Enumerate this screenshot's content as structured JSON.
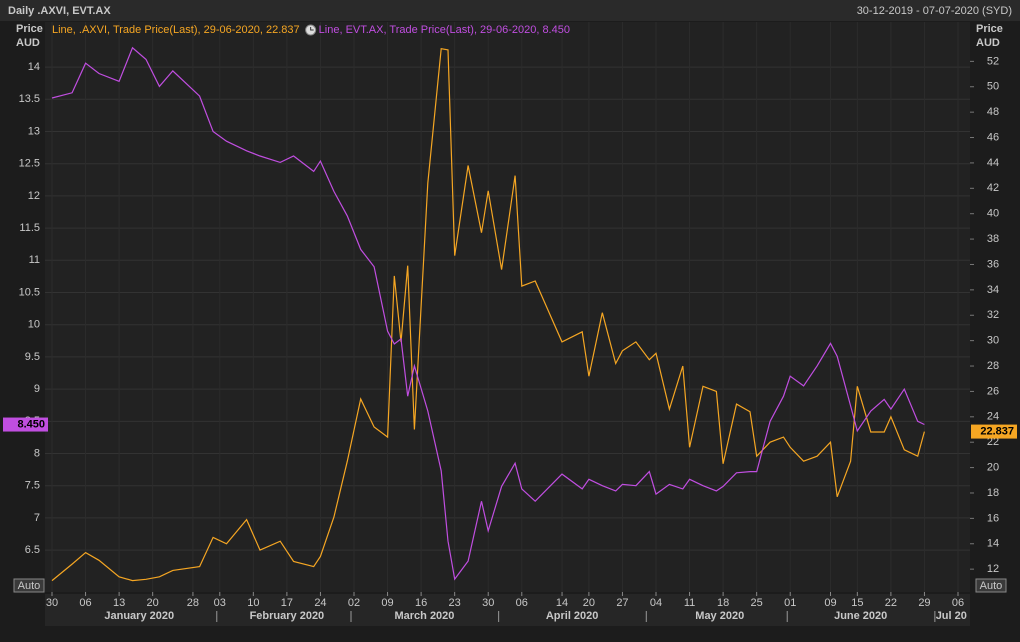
{
  "chart_data": {
    "type": "line",
    "title": "Daily .AXVI, EVT.AX",
    "subtitle": "30-12-2019 - 07-07-2020 (SYD)",
    "y_label": [
      "Price",
      "AUD"
    ],
    "y2_label": [
      "Price",
      "AUD"
    ],
    "y_mode_label": "Auto",
    "y2_mode_label": "Auto",
    "x": [
      "2019-12-30",
      "2020-01-02",
      "2020-01-06",
      "2020-01-08",
      "2020-01-13",
      "2020-01-15",
      "2020-01-17",
      "2020-01-21",
      "2020-01-23",
      "2020-01-29",
      "2020-01-31",
      "2020-02-04",
      "2020-02-07",
      "2020-02-11",
      "2020-02-14",
      "2020-02-18",
      "2020-02-21",
      "2020-02-24",
      "2020-02-26",
      "2020-02-28",
      "2020-03-03",
      "2020-03-05",
      "2020-03-09",
      "2020-03-10",
      "2020-03-11",
      "2020-03-12",
      "2020-03-13",
      "2020-03-17",
      "2020-03-19",
      "2020-03-20",
      "2020-03-23",
      "2020-03-25",
      "2020-03-27",
      "2020-03-30",
      "2020-04-01",
      "2020-04-03",
      "2020-04-06",
      "2020-04-08",
      "2020-04-14",
      "2020-04-17",
      "2020-04-20",
      "2020-04-22",
      "2020-04-24",
      "2020-04-27",
      "2020-04-29",
      "2020-05-01",
      "2020-05-04",
      "2020-05-06",
      "2020-05-08",
      "2020-05-11",
      "2020-05-13",
      "2020-05-15",
      "2020-05-18",
      "2020-05-20",
      "2020-05-22",
      "2020-05-25",
      "2020-05-27",
      "2020-05-29",
      "2020-06-01",
      "2020-06-03",
      "2020-06-05",
      "2020-06-09",
      "2020-06-10",
      "2020-06-12",
      "2020-06-15",
      "2020-06-17",
      "2020-06-19",
      "2020-06-22",
      "2020-06-24",
      "2020-06-26",
      "2020-06-29"
    ],
    "series": [
      {
        "name": "Line, .AXVI, Trade Price(Last), 29-06-2020, 22.837",
        "color": "#f5a623",
        "axis": "y2",
        "last_label": "22.837",
        "values": [
          11.1,
          12.4,
          13.3,
          12.7,
          11.4,
          11.1,
          11.2,
          11.4,
          11.9,
          12.2,
          14.5,
          14.0,
          15.9,
          13.5,
          14.2,
          12.6,
          12.2,
          13.0,
          16.1,
          20.5,
          25.4,
          23.2,
          22.4,
          35.1,
          29.9,
          35.9,
          23.0,
          42.4,
          53.0,
          52.9,
          36.7,
          43.8,
          38.5,
          41.8,
          35.6,
          43.0,
          34.3,
          34.7,
          29.9,
          30.7,
          27.2,
          32.2,
          28.2,
          29.2,
          29.9,
          28.5,
          29.0,
          24.6,
          28.0,
          21.6,
          26.4,
          26.0,
          20.3,
          25.0,
          24.4,
          20.9,
          22.0,
          22.4,
          21.6,
          20.5,
          20.9,
          22.0,
          17.7,
          20.5,
          26.4,
          22.8,
          22.8,
          24.0,
          21.4,
          20.9,
          22.837
        ]
      },
      {
        "name": "Line, EVT.AX, Trade Price(Last), 29-06-2020, 8.450",
        "color": "#c04ee0",
        "axis": "y",
        "last_label": "8.450",
        "values": [
          13.52,
          13.6,
          14.06,
          13.9,
          13.78,
          14.3,
          14.12,
          13.7,
          13.94,
          13.55,
          13.0,
          12.85,
          12.7,
          12.62,
          12.52,
          12.62,
          12.38,
          12.54,
          12.07,
          11.69,
          11.17,
          10.9,
          9.9,
          9.7,
          9.78,
          8.89,
          9.36,
          8.66,
          7.73,
          6.64,
          6.05,
          6.33,
          7.26,
          6.8,
          7.49,
          7.85,
          7.45,
          7.26,
          7.68,
          7.45,
          7.6,
          7.5,
          7.42,
          7.52,
          7.5,
          7.72,
          7.37,
          7.52,
          7.45,
          7.6,
          7.5,
          7.42,
          7.49,
          7.7,
          7.72,
          7.72,
          8.5,
          8.89,
          9.2,
          9.05,
          9.36,
          9.71,
          9.51,
          8.74,
          8.35,
          8.66,
          8.84,
          8.69,
          9.0,
          8.5,
          8.45
        ]
      }
    ],
    "ylim": [
      5.85,
      14.7
    ],
    "yticks": [
      6.5,
      7,
      7.5,
      8,
      8.5,
      9,
      9.5,
      10,
      10.5,
      11,
      11.5,
      12,
      12.5,
      13,
      13.5,
      14
    ],
    "y2lim": [
      10.2,
      55.1
    ],
    "y2ticks": [
      12,
      14,
      16,
      18,
      20,
      22,
      24,
      26,
      28,
      30,
      32,
      34,
      36,
      38,
      40,
      42,
      44,
      46,
      48,
      50,
      52
    ],
    "xlim": [
      "2019-12-30",
      "2020-07-07"
    ],
    "xticks": [
      {
        "value": "2019-12-30",
        "label": "30"
      },
      {
        "value": "2020-01-06",
        "label": "06"
      },
      {
        "value": "2020-01-13",
        "label": "13"
      },
      {
        "value": "2020-01-20",
        "label": "20"
      },
      {
        "value": "2020-01-28",
        "label": "28"
      },
      {
        "value": "2020-02-03",
        "label": "03"
      },
      {
        "value": "2020-02-10",
        "label": "10"
      },
      {
        "value": "2020-02-17",
        "label": "17"
      },
      {
        "value": "2020-02-24",
        "label": "24"
      },
      {
        "value": "2020-03-02",
        "label": "02"
      },
      {
        "value": "2020-03-09",
        "label": "09"
      },
      {
        "value": "2020-03-16",
        "label": "16"
      },
      {
        "value": "2020-03-23",
        "label": "23"
      },
      {
        "value": "2020-03-30",
        "label": "30"
      },
      {
        "value": "2020-04-06",
        "label": "06"
      },
      {
        "value": "2020-04-14",
        "label": "14"
      },
      {
        "value": "2020-04-20",
        "label": "20"
      },
      {
        "value": "2020-04-27",
        "label": "27"
      },
      {
        "value": "2020-05-04",
        "label": "04"
      },
      {
        "value": "2020-05-11",
        "label": "11"
      },
      {
        "value": "2020-05-18",
        "label": "18"
      },
      {
        "value": "2020-05-25",
        "label": "25"
      },
      {
        "value": "2020-06-01",
        "label": "01"
      },
      {
        "value": "2020-06-09",
        "label": "09"
      },
      {
        "value": "2020-06-15",
        "label": "15"
      },
      {
        "value": "2020-06-22",
        "label": "22"
      },
      {
        "value": "2020-06-29",
        "label": "29"
      },
      {
        "value": "2020-07-06",
        "label": "06"
      }
    ],
    "month_labels": [
      {
        "value": "2020-01",
        "label": "January 2020"
      },
      {
        "value": "2020-02",
        "label": "February 2020"
      },
      {
        "value": "2020-03",
        "label": "March 2020"
      },
      {
        "value": "2020-04",
        "label": "April 2020"
      },
      {
        "value": "2020-05",
        "label": "May 2020"
      },
      {
        "value": "2020-06",
        "label": "June 2020"
      },
      {
        "value": "2020-07",
        "label": "Jul 20"
      }
    ],
    "grid": true
  }
}
